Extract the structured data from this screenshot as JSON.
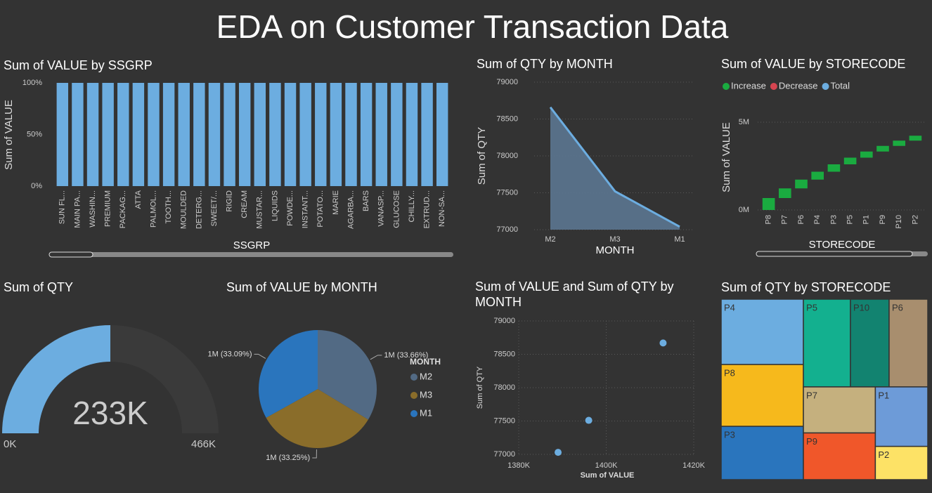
{
  "title": "EDA on Customer Transaction Data",
  "chart_data": [
    {
      "type": "bar",
      "title": "Sum of VALUE by SSGRP",
      "x_label": "SSGRP",
      "y_label": "Sum of VALUE",
      "categories": [
        "SUN FL...",
        "MAIN PA...",
        "WASHIN...",
        "PREMIUM",
        "PACKAG...",
        "ATTA",
        "PALMOL...",
        "TOOTH...",
        "MOULDED",
        "DETERG...",
        "SWEET/...",
        "RIGID",
        "CREAM",
        "MUSTAR...",
        "LIQUIDS",
        "POWDE...",
        "INSTANT...",
        "POTATO...",
        "MARIE",
        "AGARBA...",
        "BARS",
        "VANASP...",
        "GLUCOSE",
        "CHILLY...",
        "EXTRUD...",
        "NON-SA..."
      ],
      "values": [
        100,
        100,
        100,
        100,
        100,
        100,
        100,
        100,
        100,
        100,
        100,
        100,
        100,
        100,
        100,
        100,
        100,
        100,
        100,
        100,
        100,
        100,
        100,
        100,
        100,
        100
      ],
      "color": "#6cade0",
      "ylim": [
        0,
        100
      ],
      "yticks": [
        {
          "value": 0,
          "label": "0%"
        },
        {
          "value": 50,
          "label": "50%"
        },
        {
          "value": 100,
          "label": "100%"
        }
      ],
      "grid": false
    },
    {
      "type": "area",
      "title": "Sum of QTY by MONTH",
      "x_label": "MONTH",
      "y_label": "Sum of QTY",
      "categories": [
        "M2",
        "M3",
        "M1"
      ],
      "values": [
        78660,
        77520,
        77040
      ],
      "color": "#6cade0",
      "fill": "#5b7590",
      "ylim": [
        77000,
        79000
      ],
      "yticks": [
        77000,
        77500,
        78000,
        78500,
        79000
      ],
      "grid": true
    },
    {
      "type": "waterfall",
      "title": "Sum of VALUE by STORECODE",
      "x_label": "STORECODE",
      "y_label": "Sum of VALUE",
      "legend": [
        {
          "name": "Increase",
          "color": "#1aab40"
        },
        {
          "name": "Decrease",
          "color": "#d64550"
        },
        {
          "name": "Total",
          "color": "#6cade0"
        }
      ],
      "categories": [
        "P8",
        "P7",
        "P6",
        "P4",
        "P3",
        "P5",
        "P1",
        "P9",
        "P10",
        "P2"
      ],
      "values": [
        680000,
        550000,
        500000,
        450000,
        420000,
        380000,
        350000,
        320000,
        300000,
        280000
      ],
      "ylim": [
        0,
        6000000
      ],
      "yticks": [
        {
          "value": 0,
          "label": "0M"
        },
        {
          "value": 5000000,
          "label": "5M"
        }
      ],
      "grid": true
    },
    {
      "type": "gauge",
      "title": "Sum of QTY",
      "value": 233220,
      "value_label": "233K",
      "min": {
        "value": 0,
        "label": "0K"
      },
      "max": {
        "value": 466440,
        "label": "466K"
      },
      "color": "#6cade0"
    },
    {
      "type": "pie",
      "title": "Sum of VALUE by MONTH",
      "legend_title": "MONTH",
      "categories": [
        "M2",
        "M3",
        "M1"
      ],
      "values": [
        33.66,
        33.25,
        33.09
      ],
      "value_labels": [
        "1M (33.66%)",
        "1M (33.25%)",
        "1M (33.09%)"
      ],
      "colors": [
        "#526a84",
        "#8a6d2a",
        "#2a75bd"
      ]
    },
    {
      "type": "scatter",
      "title": "Sum of VALUE and Sum of QTY by MONTH",
      "x_label": "Sum of VALUE",
      "y_label": "Sum of QTY",
      "x": [
        1413000,
        1396000,
        1389000
      ],
      "values": [
        78670,
        77510,
        77030
      ],
      "color": "#6cade0",
      "xlim": [
        1380000,
        1420000
      ],
      "xticks": [
        {
          "value": 1380000,
          "label": "1380K"
        },
        {
          "value": 1400000,
          "label": "1400K"
        },
        {
          "value": 1420000,
          "label": "1420K"
        }
      ],
      "ylim": [
        77000,
        79000
      ],
      "yticks": [
        77000,
        77500,
        78000,
        78500,
        79000
      ],
      "grid": true
    },
    {
      "type": "treemap",
      "title": "Sum of QTY by STORECODE",
      "categories": [
        "P4",
        "P8",
        "P3",
        "P5",
        "P10",
        "P6",
        "P7",
        "P9",
        "P1",
        "P2"
      ],
      "values": [
        33600,
        31800,
        27400,
        25800,
        21200,
        21200,
        20700,
        21000,
        19500,
        10900
      ],
      "colors": [
        "#6cade0",
        "#f6b91c",
        "#2a75bd",
        "#13b08f",
        "#128370",
        "#a88e6e",
        "#c5b07e",
        "#f0572a",
        "#6d9bd8",
        "#fde266"
      ]
    }
  ]
}
